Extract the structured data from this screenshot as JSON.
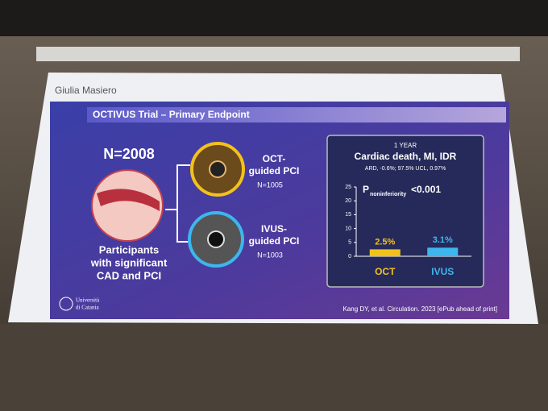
{
  "presenter": "Giulia Masiero",
  "slide": {
    "title": "OCTIVUS Trial – Primary Endpoint",
    "total_n": "N=2008",
    "participants_lines": [
      "Participants",
      "with significant",
      "CAD and PCI"
    ],
    "arms": [
      {
        "label_lines": [
          "OCT-",
          "guided PCI"
        ],
        "n": "N=1005"
      },
      {
        "label_lines": [
          "IVUS-",
          "guided PCI"
        ],
        "n": "N=1003"
      }
    ],
    "university_lines": [
      "Università",
      "di Catania"
    ],
    "citation": "Kang DY, et al. Circulation. 2023 [ePub ahead of print]"
  },
  "chart_data": {
    "type": "bar",
    "supertitle": "1 YEAR",
    "title": "Cardiac death, MI, IDR",
    "subtitle": "ARD, -0.6%; 97.5% UCL, 0.97%",
    "annotation": {
      "p": "P",
      "sub": "noninferiority",
      "rest": "<0.001"
    },
    "categories": [
      "OCT",
      "IVUS"
    ],
    "values": [
      2.5,
      3.1
    ],
    "value_labels": [
      "2.5%",
      "3.1%"
    ],
    "colors": [
      "#f2c21b",
      "#3db6ee"
    ],
    "ylim": [
      0,
      25
    ],
    "yticks": [
      0,
      5,
      10,
      15,
      20,
      25
    ],
    "grid": false
  }
}
